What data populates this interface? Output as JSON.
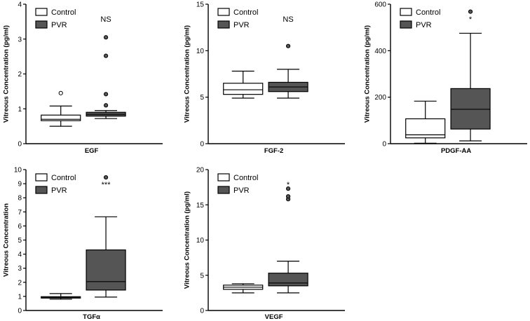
{
  "colors": {
    "control": "#ffffff",
    "pvr": "#555555",
    "outline": "#000000"
  },
  "chart_data": [
    {
      "type": "box",
      "category": "EGF",
      "ylabel": "Vitreous Concentration  (pg/ml)",
      "ylim": [
        0,
        4
      ],
      "yticks": [
        0,
        1,
        2,
        3,
        4
      ],
      "legend": [
        "Control",
        "PVR"
      ],
      "legend_position": "top-left",
      "significance": "NS",
      "series": [
        {
          "name": "Control",
          "min": 0.5,
          "q1": 0.66,
          "median": 0.7,
          "q3": 0.82,
          "max": 1.08,
          "outliers": [
            1.45
          ]
        },
        {
          "name": "PVR",
          "min": 0.72,
          "q1": 0.79,
          "median": 0.84,
          "q3": 0.9,
          "max": 0.95,
          "outliers": [
            1.1,
            1.42,
            2.52,
            3.05
          ]
        }
      ]
    },
    {
      "type": "box",
      "category": "FGF-2",
      "ylabel": "Vitreous Concentration  (pg/ml)",
      "ylim": [
        0,
        15
      ],
      "yticks": [
        0,
        5,
        10,
        15
      ],
      "legend": [
        "Control",
        "PVR"
      ],
      "legend_position": "top-left",
      "significance": "NS",
      "series": [
        {
          "name": "Control",
          "min": 4.9,
          "q1": 5.3,
          "median": 5.8,
          "q3": 6.5,
          "max": 7.8,
          "outliers": []
        },
        {
          "name": "PVR",
          "min": 4.9,
          "q1": 5.6,
          "median": 6.1,
          "q3": 6.6,
          "max": 8.0,
          "outliers": [
            10.5
          ]
        }
      ]
    },
    {
      "type": "box",
      "category": "PDGF-AA",
      "ylabel": "Vitreous Concentration  (pg/ml)",
      "ylim": [
        0,
        600
      ],
      "yticks": [
        0,
        200,
        400,
        600
      ],
      "legend": [
        "Control",
        "PVR"
      ],
      "legend_position": "top-left",
      "significance": "*",
      "series": [
        {
          "name": "Control",
          "min": 2,
          "q1": 25,
          "median": 38,
          "q3": 107,
          "max": 183,
          "outliers": []
        },
        {
          "name": "PVR",
          "min": 12,
          "q1": 63,
          "median": 148,
          "q3": 237,
          "max": 475,
          "outliers": [
            568
          ]
        }
      ]
    },
    {
      "type": "box",
      "category": "TGFα",
      "ylabel": "Vitreous Concentration",
      "ylim": [
        0,
        10
      ],
      "yticks": [
        0,
        1,
        2,
        3,
        4,
        5,
        6,
        7,
        8,
        9,
        10
      ],
      "legend": [
        "Control",
        "PVR"
      ],
      "legend_position": "top-left",
      "significance": "***",
      "series": [
        {
          "name": "Control",
          "min": 0.8,
          "q1": 0.88,
          "median": 0.93,
          "q3": 0.98,
          "max": 1.2,
          "outliers": []
        },
        {
          "name": "PVR",
          "min": 0.95,
          "q1": 1.45,
          "median": 2.05,
          "q3": 4.3,
          "max": 6.65,
          "outliers": [
            9.45
          ]
        }
      ]
    },
    {
      "type": "box",
      "category": "VEGF",
      "ylabel": "Vitreous Concentration  (pg/ml)",
      "ylim": [
        0,
        20
      ],
      "yticks": [
        0,
        5,
        10,
        15,
        20
      ],
      "legend": [
        "Control",
        "PVR"
      ],
      "legend_position": "top-left",
      "significance": "*",
      "series": [
        {
          "name": "Control",
          "min": 2.5,
          "q1": 3.0,
          "median": 3.3,
          "q3": 3.6,
          "max": 3.8,
          "outliers": []
        },
        {
          "name": "PVR",
          "min": 2.5,
          "q1": 3.5,
          "median": 3.9,
          "q3": 5.3,
          "max": 7.0,
          "outliers": [
            15.8,
            16.2,
            17.3
          ]
        }
      ]
    }
  ]
}
